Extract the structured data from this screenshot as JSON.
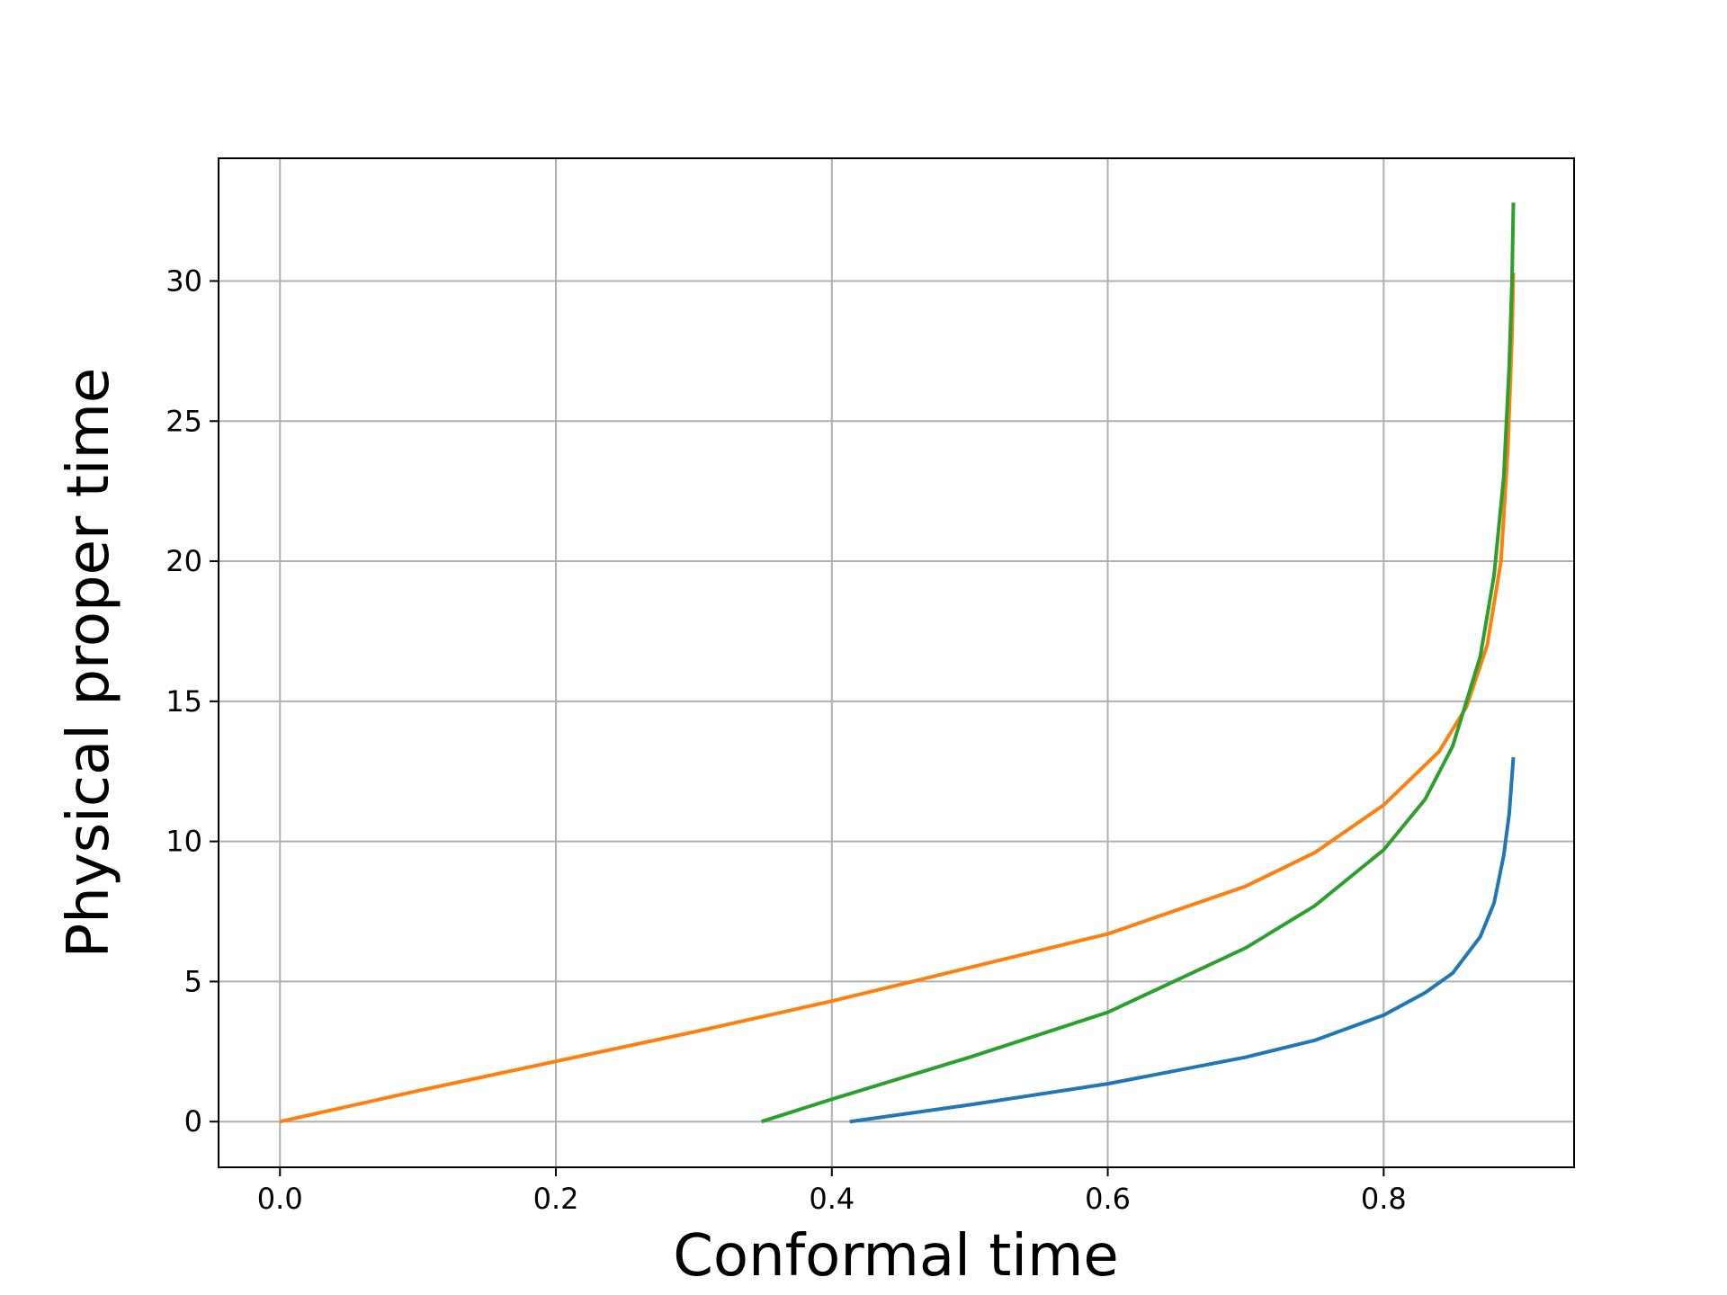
{
  "chart_data": {
    "type": "line",
    "xlabel": "Conformal time",
    "ylabel": "Physical proper time",
    "xlim": [
      -0.0445,
      0.938
    ],
    "ylim": [
      -1.63,
      34.38
    ],
    "xticks": [
      {
        "value": 0,
        "label": "0.0"
      },
      0.2,
      0.4,
      0.6,
      0.8
    ],
    "yticks": [
      0,
      5,
      10,
      15,
      20,
      25,
      30
    ],
    "grid": true,
    "series": [
      {
        "color": "#1f77b4",
        "x": [
          0.413,
          0.5,
          0.6,
          0.7,
          0.75,
          0.8,
          0.83,
          0.85,
          0.87,
          0.88,
          0.887,
          0.891,
          0.894
        ],
        "values": [
          0,
          0.6,
          1.35,
          2.3,
          2.9,
          3.8,
          4.6,
          5.3,
          6.6,
          7.8,
          9.5,
          11,
          13
        ]
      },
      {
        "color": "#ff7f0e",
        "x": [
          0,
          0.1,
          0.2,
          0.3,
          0.4,
          0.5,
          0.6,
          0.7,
          0.75,
          0.8,
          0.84,
          0.86,
          0.875,
          0.885,
          0.89,
          0.893,
          0.894
        ],
        "values": [
          0,
          1.1,
          2.15,
          3.2,
          4.3,
          5.5,
          6.7,
          8.4,
          9.6,
          11.3,
          13.2,
          14.8,
          17,
          20,
          24,
          28,
          30.3
        ]
      },
      {
        "color": "#2ca02c",
        "x": [
          0.349,
          0.4,
          0.5,
          0.6,
          0.7,
          0.75,
          0.8,
          0.83,
          0.85,
          0.87,
          0.88,
          0.887,
          0.891,
          0.893,
          0.894
        ],
        "values": [
          0,
          0.8,
          2.3,
          3.9,
          6.2,
          7.7,
          9.7,
          11.5,
          13.4,
          16.6,
          19.5,
          23,
          27,
          30,
          32.8
        ]
      }
    ]
  }
}
